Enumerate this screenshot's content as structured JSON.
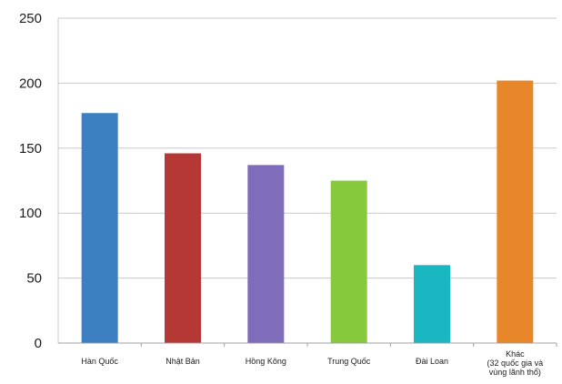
{
  "chart_data": {
    "type": "bar",
    "title": "",
    "xlabel": "",
    "ylabel": "",
    "categories": [
      [
        "Hàn Quốc"
      ],
      [
        "Nhật Bản"
      ],
      [
        "Hồng Kông"
      ],
      [
        "Trung Quốc"
      ],
      [
        "Đài Loan"
      ],
      [
        "Khác",
        "(32 quốc gia và",
        "vùng lãnh thổ)"
      ]
    ],
    "values": [
      177,
      146,
      137,
      125,
      60,
      202
    ],
    "colors": [
      "#3d80c2",
      "#b63834",
      "#7f6cba",
      "#86c93c",
      "#1ab6c2",
      "#e8862a"
    ],
    "ylim": [
      0,
      250
    ],
    "yticks": [
      0,
      50,
      100,
      150,
      200,
      250
    ],
    "grid": true,
    "legend": "none"
  }
}
